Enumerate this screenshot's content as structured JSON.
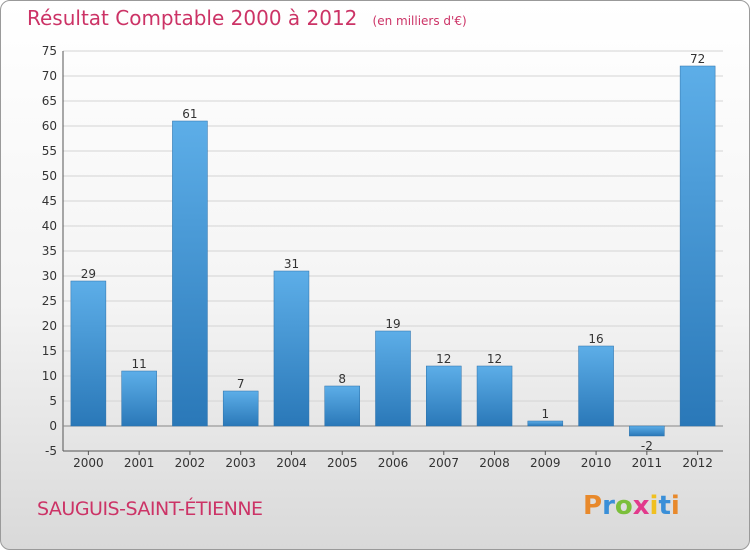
{
  "header": {
    "title": "Résultat Comptable 2000 à 2012",
    "unit": "(en milliers d'€)"
  },
  "footer": {
    "place": "SAUGUIS-SAINT-ÉTIENNE",
    "logo_letters": [
      "P",
      "r",
      "o",
      "x",
      "i",
      "t",
      "i"
    ],
    "logo_colors": [
      "#e8892b",
      "#3a8fd8",
      "#7bbf3a",
      "#e23a8c",
      "#f0c020",
      "#3a8fd8",
      "#e8892b"
    ]
  },
  "chart_data": {
    "type": "bar",
    "title": "Résultat Comptable 2000 à 2012",
    "categories": [
      "2000",
      "2001",
      "2002",
      "2003",
      "2004",
      "2005",
      "2006",
      "2007",
      "2008",
      "2009",
      "2010",
      "2011",
      "2012"
    ],
    "values": [
      29,
      11,
      61,
      7,
      31,
      8,
      19,
      12,
      12,
      1,
      16,
      -2,
      72
    ],
    "ylim": [
      -5,
      75
    ],
    "yticks": [
      -5,
      0,
      5,
      10,
      15,
      20,
      25,
      30,
      35,
      40,
      45,
      50,
      55,
      60,
      65,
      70,
      75
    ],
    "grid": true,
    "bar_color": "#3a8fd0"
  }
}
